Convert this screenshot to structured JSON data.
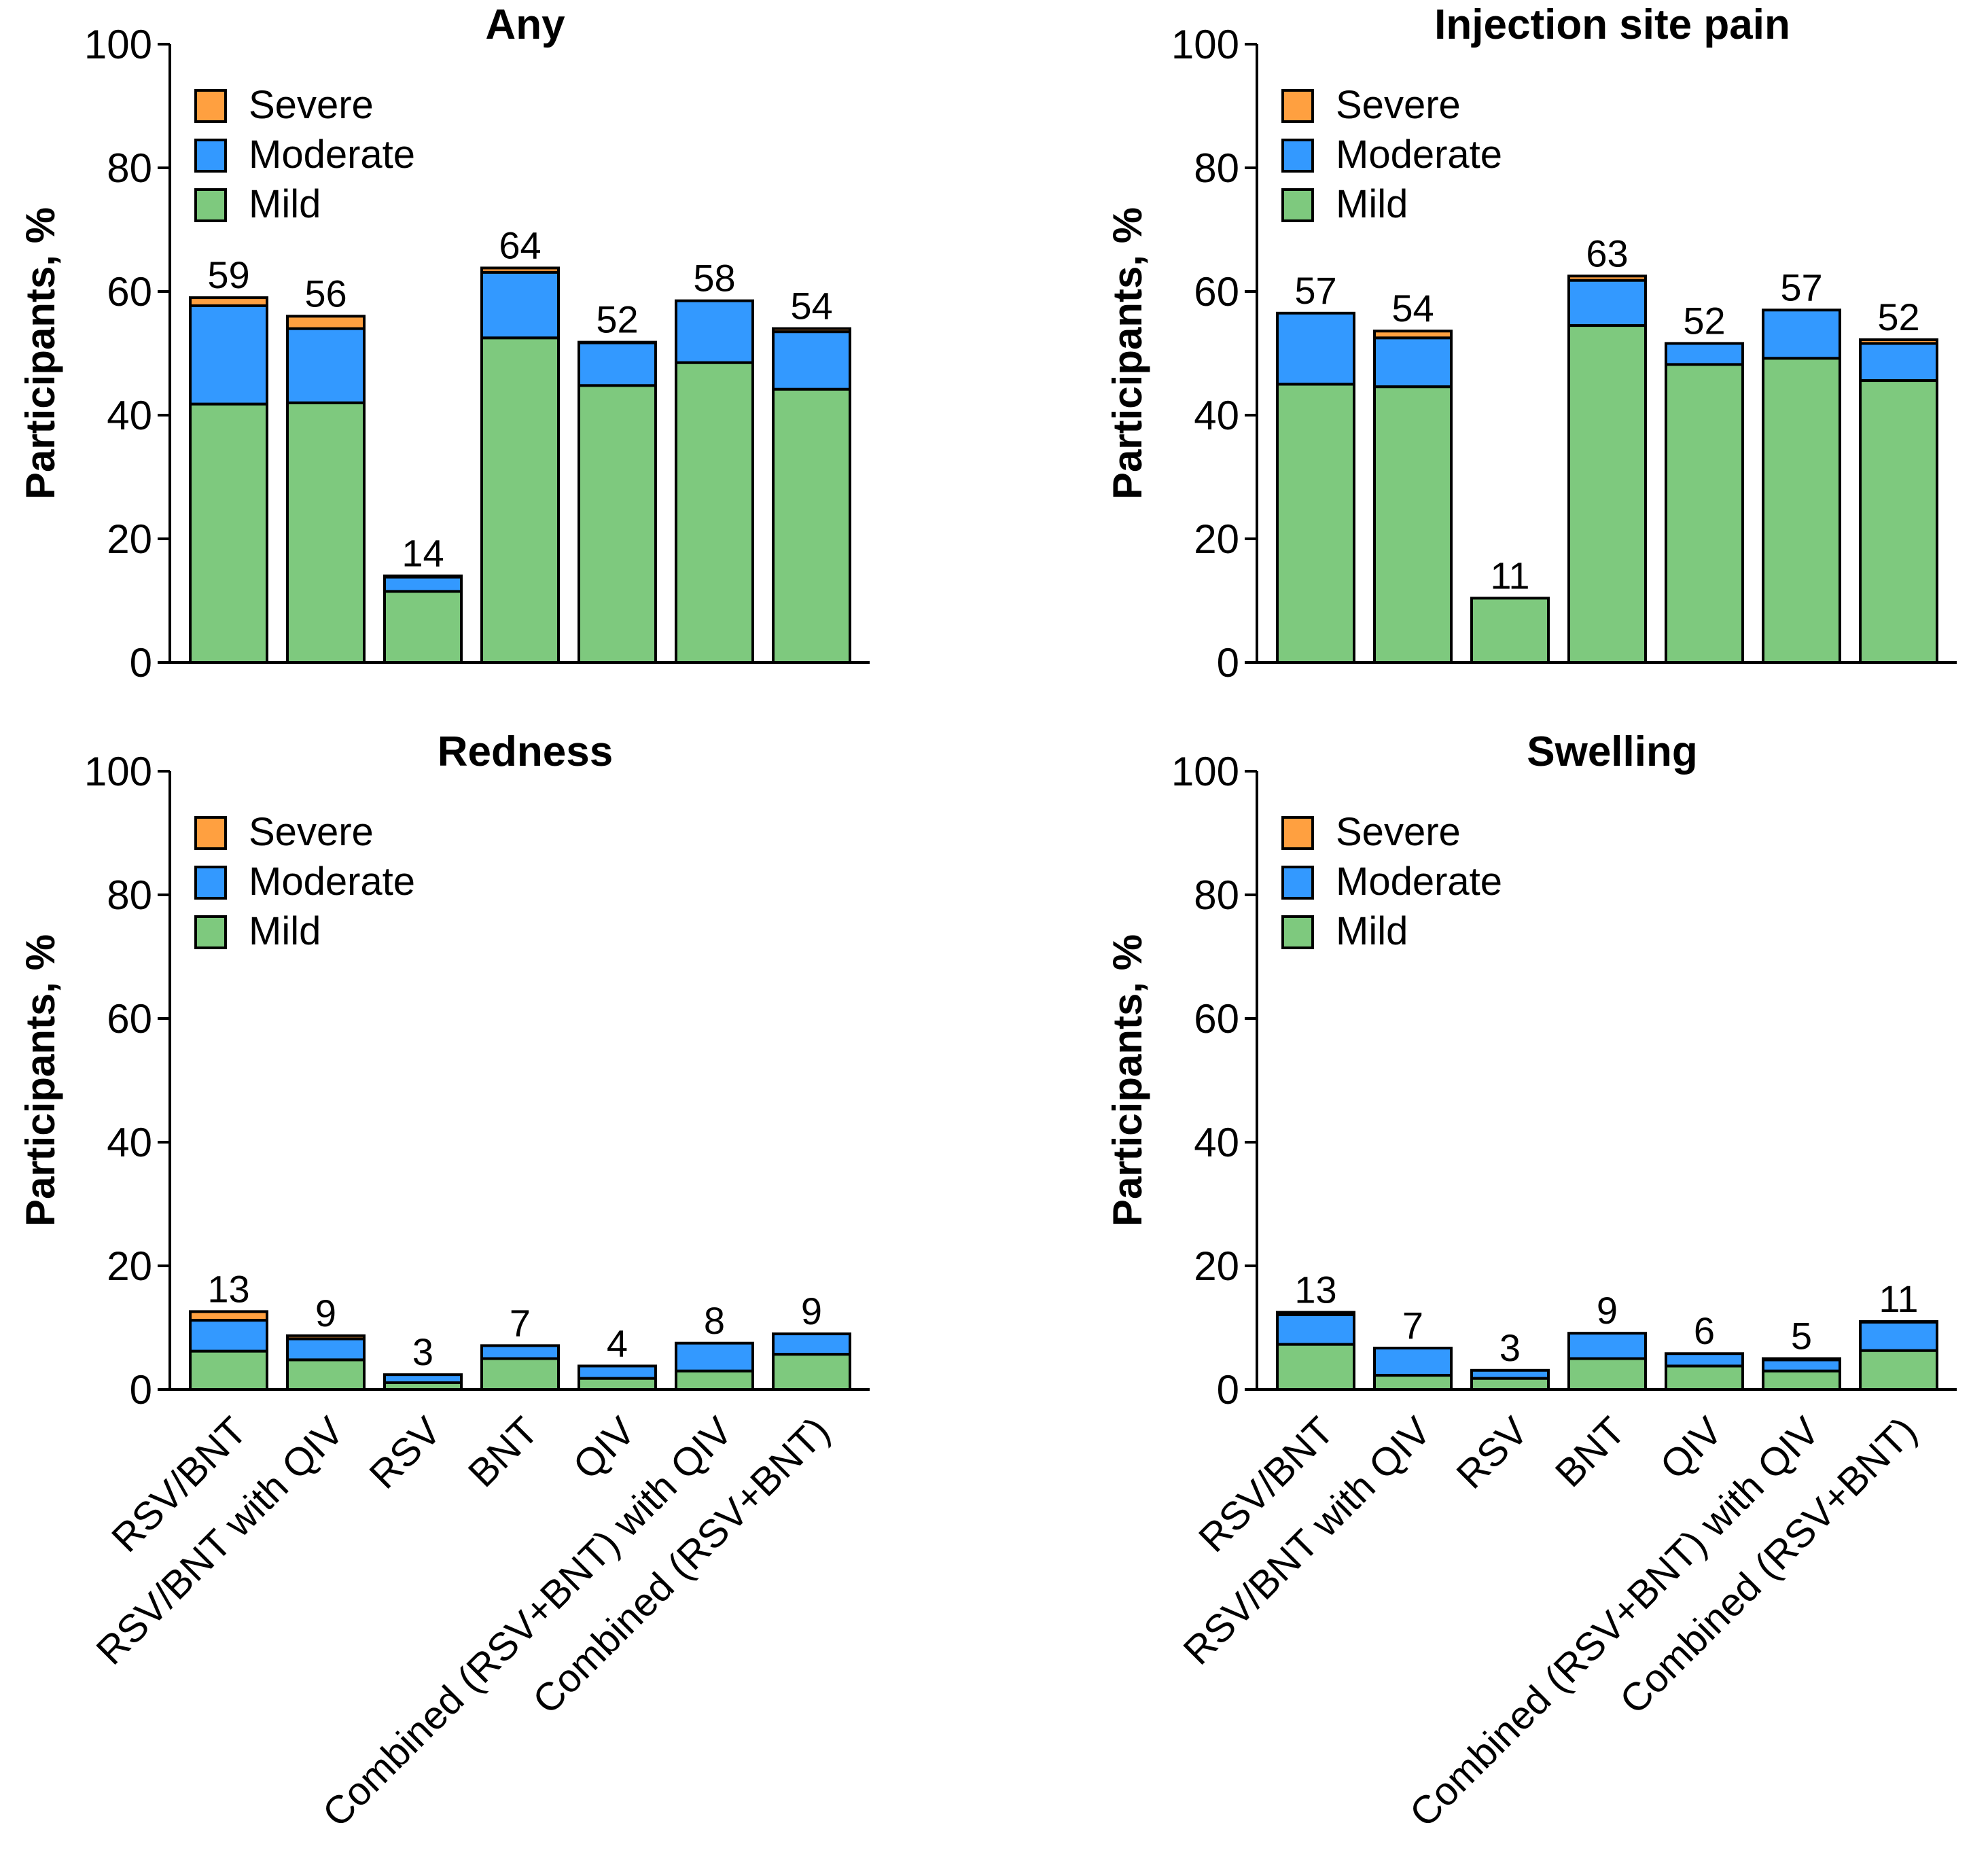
{
  "colors": {
    "mild": "#7ec97e",
    "moderate": "#3399ff",
    "severe": "#ffa040",
    "axis": "#000000"
  },
  "legend": [
    "Severe",
    "Moderate",
    "Mild"
  ],
  "chart_data": [
    {
      "type": "bar",
      "stacked": true,
      "title": "Any",
      "ylabel": "Participants, %",
      "xlabel": "",
      "ylim": [
        0,
        100
      ],
      "yticks": [
        "0",
        "20",
        "40",
        "60",
        "80",
        "100"
      ],
      "categories": [
        "RSV/BNT",
        "RSV/BNT with QIV",
        "RSV",
        "BNT",
        "QIV",
        "Combined (RSV+BNT) with QIV",
        "Combined (RSV+BNT)"
      ],
      "series": [
        {
          "name": "Mild",
          "values": [
            41.8,
            42.0,
            11.5,
            52.5,
            44.8,
            48.5,
            44.2
          ]
        },
        {
          "name": "Moderate",
          "values": [
            15.9,
            12.0,
            2.3,
            10.6,
            6.9,
            10.0,
            9.3
          ]
        },
        {
          "name": "Severe",
          "values": [
            1.3,
            2.0,
            0.2,
            0.7,
            0.1,
            0.0,
            0.5
          ]
        }
      ],
      "totals": [
        "59",
        "56",
        "14",
        "64",
        "52",
        "58",
        "54"
      ],
      "legend_position": "top-left",
      "show_x_labels": false
    },
    {
      "type": "bar",
      "stacked": true,
      "title": "Injection site pain",
      "ylabel": "Participants, %",
      "xlabel": "",
      "ylim": [
        0,
        100
      ],
      "yticks": [
        "0",
        "20",
        "40",
        "60",
        "80",
        "100"
      ],
      "categories": [
        "RSV/BNT",
        "RSV/BNT with QIV",
        "RSV",
        "BNT",
        "QIV",
        "Combined (RSV+BNT) with QIV",
        "Combined (RSV+BNT)"
      ],
      "series": [
        {
          "name": "Mild",
          "values": [
            45.0,
            44.6,
            10.4,
            54.5,
            48.2,
            49.2,
            45.6
          ]
        },
        {
          "name": "Moderate",
          "values": [
            11.5,
            7.9,
            0.0,
            7.3,
            3.4,
            7.8,
            6.0
          ]
        },
        {
          "name": "Severe",
          "values": [
            0.0,
            1.1,
            0.0,
            0.7,
            0.0,
            0.0,
            0.6
          ]
        }
      ],
      "totals": [
        "57",
        "54",
        "11",
        "63",
        "52",
        "57",
        "52"
      ],
      "legend_position": "top-left",
      "show_x_labels": false
    },
    {
      "type": "bar",
      "stacked": true,
      "title": "Redness",
      "ylabel": "Participants, %",
      "xlabel": "",
      "ylim": [
        0,
        100
      ],
      "yticks": [
        "0",
        "20",
        "40",
        "60",
        "80",
        "100"
      ],
      "categories": [
        "RSV/BNT",
        "RSV/BNT with QIV",
        "RSV",
        "BNT",
        "QIV",
        "Combined (RSV+BNT) with QIV",
        "Combined (RSV+BNT)"
      ],
      "series": [
        {
          "name": "Mild",
          "values": [
            6.2,
            4.8,
            1.1,
            5.0,
            1.8,
            3.0,
            5.7
          ]
        },
        {
          "name": "Moderate",
          "values": [
            5.0,
            3.4,
            1.3,
            2.1,
            2.0,
            4.5,
            3.3
          ]
        },
        {
          "name": "Severe",
          "values": [
            1.4,
            0.5,
            0.0,
            0.0,
            0.0,
            0.0,
            0.0
          ]
        }
      ],
      "totals": [
        "13",
        "9",
        "3",
        "7",
        "4",
        "8",
        "9"
      ],
      "legend_position": "top-left",
      "show_x_labels": true
    },
    {
      "type": "bar",
      "stacked": true,
      "title": "Swelling",
      "ylabel": "Participants, %",
      "xlabel": "",
      "ylim": [
        0,
        100
      ],
      "yticks": [
        "0",
        "20",
        "40",
        "60",
        "80",
        "100"
      ],
      "categories": [
        "RSV/BNT",
        "RSV/BNT with QIV",
        "RSV",
        "BNT",
        "QIV",
        "Combined (RSV+BNT) with QIV",
        "Combined (RSV+BNT)"
      ],
      "series": [
        {
          "name": "Mild",
          "values": [
            7.3,
            2.3,
            1.8,
            5.0,
            3.8,
            3.0,
            6.3
          ]
        },
        {
          "name": "Moderate",
          "values": [
            4.8,
            4.4,
            1.3,
            4.1,
            2.0,
            1.8,
            4.6
          ]
        },
        {
          "name": "Severe",
          "values": [
            0.4,
            0.0,
            0.0,
            0.0,
            0.0,
            0.2,
            0.1
          ]
        }
      ],
      "totals": [
        "13",
        "7",
        "3",
        "9",
        "6",
        "5",
        "11"
      ],
      "legend_position": "top-left",
      "show_x_labels": true
    }
  ]
}
